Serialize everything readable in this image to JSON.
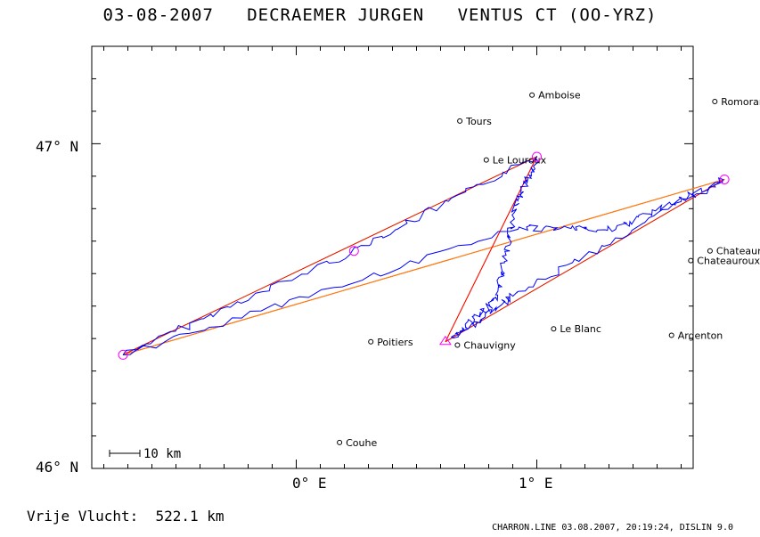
{
  "header": {
    "date": "03-08-2007",
    "pilot": "DECRAEMER JURGEN",
    "glider": "VENTUS CT (OO-YRZ)"
  },
  "map": {
    "lon_range": [
      -0.85,
      1.65
    ],
    "lat_range": [
      46.0,
      47.3
    ],
    "lat_ticks": [
      {
        "value": 47.0,
        "label": "47° N"
      },
      {
        "value": 46.0,
        "label": "46° N"
      }
    ],
    "lon_ticks": [
      {
        "value": 0.0,
        "label": "0° E"
      },
      {
        "value": 1.0,
        "label": "1° E"
      }
    ],
    "colors": {
      "track": "#0000ff",
      "frame": "#000000",
      "turnpoint": "#ff00ff",
      "leg_red": "#ff0000",
      "leg_orange": "#ff8000",
      "leg_green": "#66ff00"
    },
    "cities": [
      {
        "name": "Amboise",
        "lon": 0.98,
        "lat": 47.15
      },
      {
        "name": "Romorantin",
        "lon": 1.74,
        "lat": 47.13
      },
      {
        "name": "Tours",
        "lon": 0.68,
        "lat": 47.07
      },
      {
        "name": "Le Louroux",
        "lon": 0.79,
        "lat": 46.95
      },
      {
        "name": "Chateauroux-Deols",
        "lon": 1.72,
        "lat": 46.67
      },
      {
        "name": "Chateauroux-Villers",
        "lon": 1.64,
        "lat": 46.64
      },
      {
        "name": "Poitiers",
        "lon": 0.31,
        "lat": 46.39
      },
      {
        "name": "Le Blanc",
        "lon": 1.07,
        "lat": 46.43
      },
      {
        "name": "Argenton",
        "lon": 1.56,
        "lat": 46.41
      },
      {
        "name": "Chauvigny",
        "lon": 0.67,
        "lat": 46.38
      },
      {
        "name": "Couhe",
        "lon": 0.18,
        "lat": 46.08
      }
    ],
    "turnpoints": [
      {
        "name": "tp-start",
        "lon": -0.72,
        "lat": 46.35
      },
      {
        "name": "tp-north",
        "lon": 1.0,
        "lat": 46.96
      },
      {
        "name": "tp-east",
        "lon": 1.78,
        "lat": 46.89
      },
      {
        "name": "tp-mid",
        "lon": 0.24,
        "lat": 46.67
      }
    ],
    "start_triangle": {
      "lon": 0.62,
      "lat": 46.39
    },
    "scale_bar": {
      "label": "10 km"
    }
  },
  "footer": {
    "distance_label": "Vrije Vlucht:",
    "distance_value": "522.1 km",
    "program_info": "CHARRON.LINE 03.08.2007, 20:19:24, DISLIN 9.0"
  }
}
